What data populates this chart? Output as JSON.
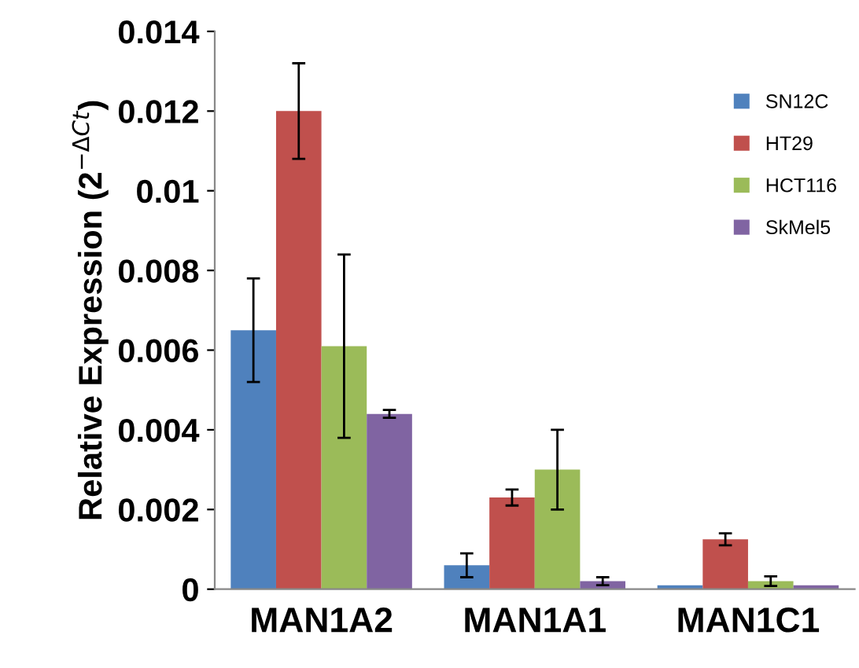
{
  "chart_data": {
    "type": "bar",
    "ylabel": "Relative Expression (2$^{−ΔCt}$)",
    "categories": [
      "MAN1A2",
      "MAN1A1",
      "MAN1C1"
    ],
    "series": [
      {
        "name": "SN12C",
        "color": "#4f81bd",
        "values": [
          0.0065,
          0.0006,
          0.0001
        ],
        "errors": [
          0.0013,
          0.0003,
          null
        ]
      },
      {
        "name": "HT29",
        "color": "#c0504d",
        "values": [
          0.012,
          0.0023,
          0.00125
        ],
        "errors": [
          0.0012,
          0.0002,
          0.00015
        ]
      },
      {
        "name": "HCT116",
        "color": "#9bbb59",
        "values": [
          0.0061,
          0.003,
          0.0002
        ],
        "errors": [
          0.0023,
          0.001,
          0.00012
        ]
      },
      {
        "name": "SkMel5",
        "color": "#8064a2",
        "values": [
          0.0044,
          0.0002,
          0.0001
        ],
        "errors": [
          0.0001,
          0.0001,
          null
        ]
      }
    ],
    "ylim": [
      0,
      0.014
    ],
    "yticks": [
      0,
      0.002,
      0.004,
      0.006,
      0.008,
      0.01,
      0.012,
      0.014
    ],
    "grid": false,
    "legend": "top right"
  }
}
